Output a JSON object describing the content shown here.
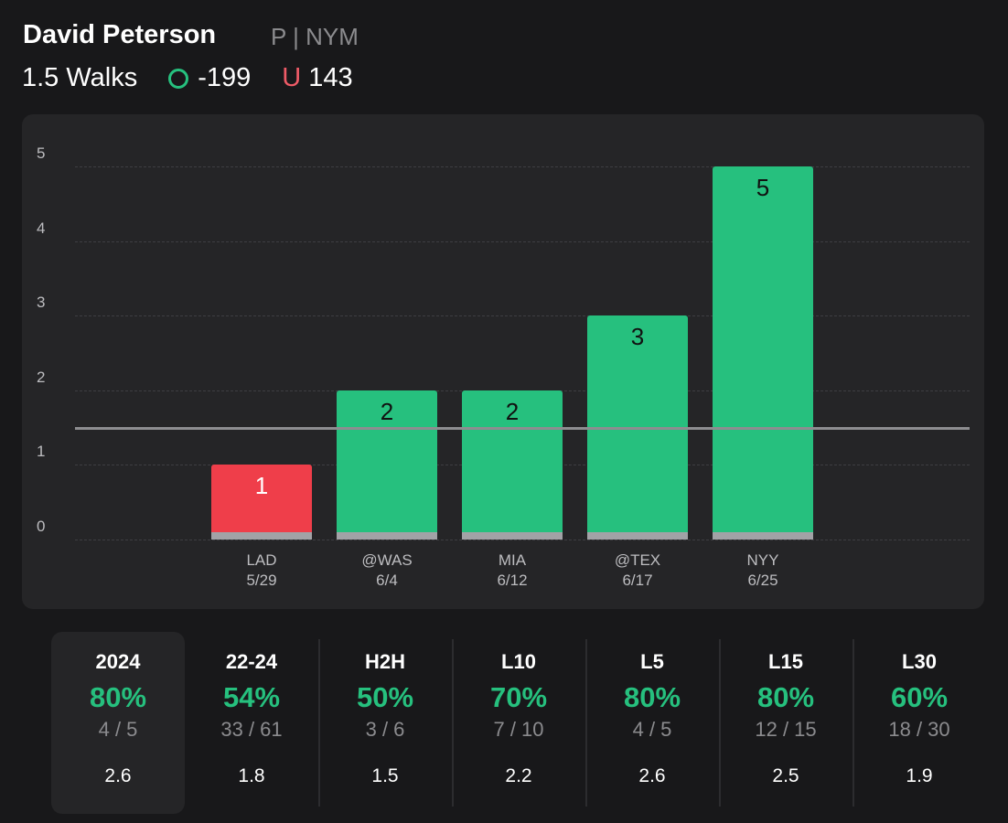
{
  "player": {
    "name": "David Peterson",
    "position": "P | NYM"
  },
  "prop": {
    "line_label": "1.5 Walks",
    "over_label": "O",
    "over_odds": "-199",
    "under_label": "U",
    "under_odds": "143"
  },
  "colors": {
    "over": "#26c07e",
    "under": "#ef3e4a",
    "threshold": "#8d8d90"
  },
  "chart_data": {
    "type": "bar",
    "categories": [
      "LAD 5/29",
      "@WAS 6/4",
      "MIA 6/12",
      "@TEX 6/17",
      "NYY 6/25"
    ],
    "opponents": [
      "LAD",
      "@WAS",
      "MIA",
      "@TEX",
      "NYY"
    ],
    "dates": [
      "5/29",
      "6/4",
      "6/12",
      "6/17",
      "6/25"
    ],
    "values": [
      1,
      2,
      2,
      3,
      5
    ],
    "value_labels": [
      "1",
      "2",
      "2",
      "3",
      "5"
    ],
    "threshold": 1.5,
    "ylim": [
      0,
      5
    ],
    "yticks": [
      "0",
      "1",
      "2",
      "3",
      "4",
      "5"
    ],
    "grid": true
  },
  "stats": [
    {
      "title": "2024",
      "pct": "80%",
      "frac": "4 / 5",
      "avg": "2.6",
      "active": true
    },
    {
      "title": "22-24",
      "pct": "54%",
      "frac": "33 / 61",
      "avg": "1.8"
    },
    {
      "title": "H2H",
      "pct": "50%",
      "frac": "3 / 6",
      "avg": "1.5"
    },
    {
      "title": "L10",
      "pct": "70%",
      "frac": "7 / 10",
      "avg": "2.2"
    },
    {
      "title": "L5",
      "pct": "80%",
      "frac": "4 / 5",
      "avg": "2.6"
    },
    {
      "title": "L15",
      "pct": "80%",
      "frac": "12 / 15",
      "avg": "2.5"
    },
    {
      "title": "L30",
      "pct": "60%",
      "frac": "18 / 30",
      "avg": "1.9"
    }
  ]
}
